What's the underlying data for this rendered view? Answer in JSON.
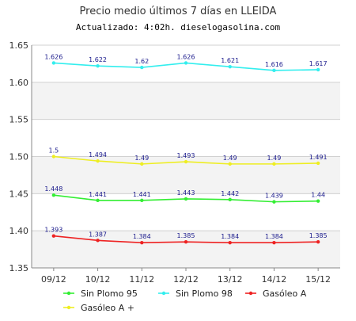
{
  "chart_data": {
    "type": "line",
    "title": "Precio medio últimos 7 días en LLEIDA",
    "subtitle": "Actualizado: 4:02h. dieselogasolina.com",
    "categories": [
      "09/12",
      "10/12",
      "11/12",
      "12/12",
      "13/12",
      "14/12",
      "15/12"
    ],
    "ylim": [
      1.35,
      1.65
    ],
    "yticks": [
      "1.35",
      "1.40",
      "1.45",
      "1.50",
      "1.55",
      "1.60",
      "1.65"
    ],
    "legend_position": "bottom",
    "series": [
      {
        "name": "Sin Plomo 95",
        "color": "#33ee33",
        "values": [
          1.448,
          1.441,
          1.441,
          1.443,
          1.442,
          1.439,
          1.44
        ],
        "labels": [
          "1.448",
          "1.441",
          "1.441",
          "1.443",
          "1.442",
          "1.439",
          "1.44"
        ]
      },
      {
        "name": "Sin Plomo 98",
        "color": "#33eeee",
        "values": [
          1.626,
          1.622,
          1.62,
          1.626,
          1.621,
          1.616,
          1.617
        ],
        "labels": [
          "1.626",
          "1.622",
          "1.62",
          "1.626",
          "1.621",
          "1.616",
          "1.617"
        ]
      },
      {
        "name": "Gasóleo A",
        "color": "#ee2222",
        "values": [
          1.393,
          1.387,
          1.384,
          1.385,
          1.384,
          1.384,
          1.385
        ],
        "labels": [
          "1.393",
          "1.387",
          "1.384",
          "1.385",
          "1.384",
          "1.384",
          "1.385"
        ]
      },
      {
        "name": "Gasóleo A +",
        "color": "#eeee22",
        "values": [
          1.5,
          1.494,
          1.49,
          1.493,
          1.49,
          1.49,
          1.491
        ],
        "labels": [
          "1.5",
          "1.494",
          "1.49",
          "1.493",
          "1.49",
          "1.49",
          "1.491"
        ]
      }
    ]
  }
}
